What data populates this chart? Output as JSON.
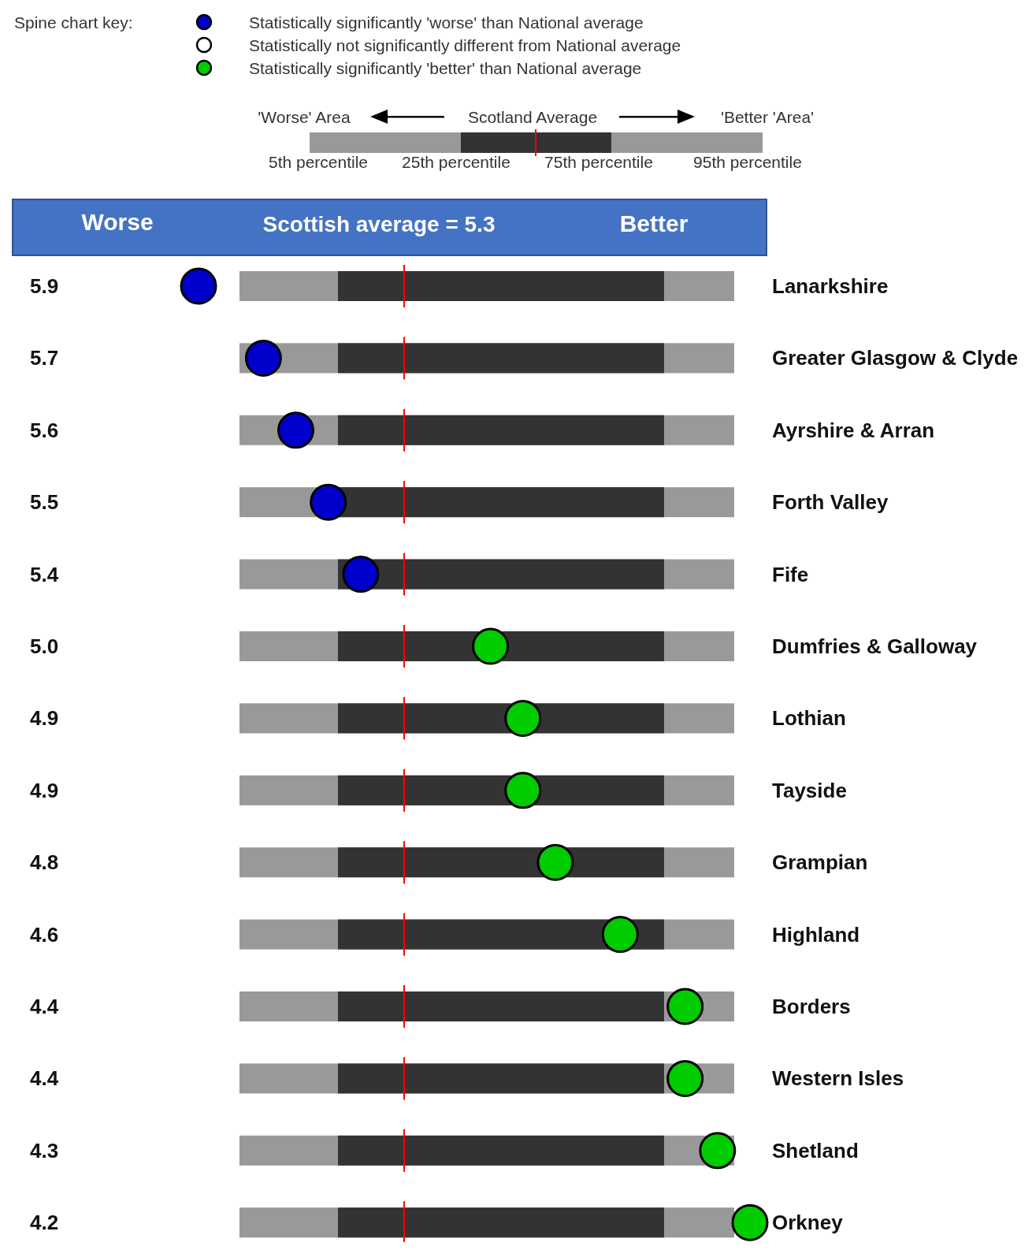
{
  "chart_data": {
    "type": "other",
    "legend_title": "Spine chart key:",
    "legend": "top left",
    "categories": [
      "Lanarkshire",
      "Greater Glasgow & Clyde",
      "Ayrshire & Arran",
      "Forth Valley",
      "Fife",
      "Dumfries & Galloway",
      "Lothian",
      "Tayside",
      "Grampian",
      "Highland",
      "Borders",
      "Western Isles",
      "Shetland",
      "Orkney"
    ],
    "series": [
      {
        "name": "Statistically significantly 'worse' than National average",
        "color": "#0000cc",
        "values": [
          5.9,
          5.7,
          5.6,
          5.5,
          5.4,
          null,
          null,
          null,
          null,
          null,
          null,
          null,
          null,
          null
        ],
        "value_labels": [
          "5.9",
          "5.7",
          "5.6",
          "5.5",
          "5.4",
          null,
          null,
          null,
          null,
          null,
          null,
          null,
          null,
          null
        ]
      },
      {
        "name": "Statistically not significantly different from National average",
        "color": "#ffffff",
        "values": [
          null,
          null,
          null,
          null,
          null,
          null,
          null,
          null,
          null,
          null,
          null,
          null,
          null,
          null
        ]
      },
      {
        "name": "Statistically significantly 'better' than National average",
        "color": "#00cc00",
        "values": [
          null,
          null,
          null,
          null,
          null,
          5.0,
          4.9,
          4.9,
          4.8,
          4.6,
          4.4,
          4.4,
          4.3,
          4.2
        ],
        "value_labels": [
          null,
          null,
          null,
          null,
          null,
          "5.0",
          "4.9",
          "4.9",
          "4.8",
          "4.6",
          "4.4",
          "4.4",
          "4.3",
          "4.2"
        ]
      }
    ],
    "annotations": [
      "Worse",
      "Better",
      "'Worse' Area",
      "Scotland Average",
      "'Better 'Area'",
      "5th percentile",
      "25th percentile",
      "75th percentile",
      "95th percentile",
      "Scottish average = 5.3"
    ]
  }
}
